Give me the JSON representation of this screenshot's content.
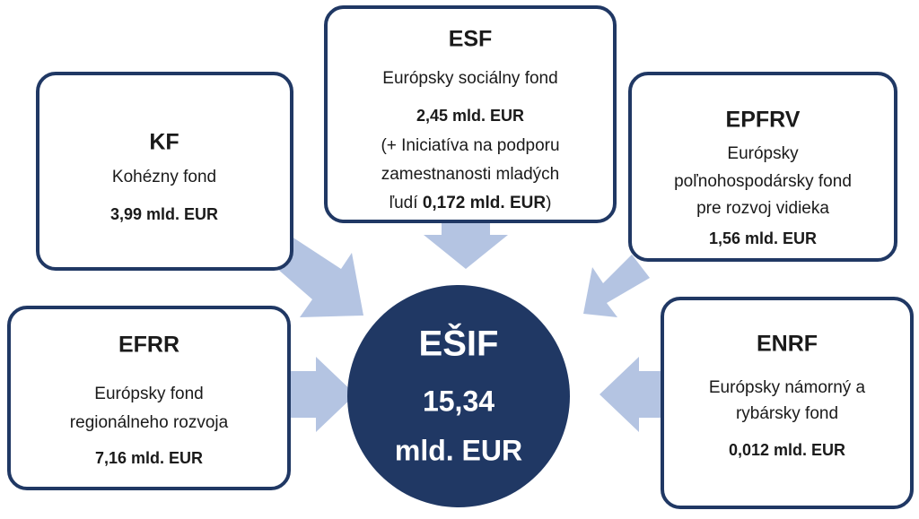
{
  "nodes": [
    {
      "title": "KF",
      "lines": [
        "Kohézny fond"
      ],
      "amount": "3,99 mld. EUR"
    },
    {
      "title": "ESF",
      "lines": [
        "Európsky sociálny fond"
      ],
      "amount": "2,45 mld. EUR",
      "note_lines": [
        "(+ Iniciatíva  na podporu",
        "zamestnanosti mladých",
        "ľudí "
      ],
      "note_amount": "0,172 mld. EUR",
      "note_end": ")"
    },
    {
      "title": "EPFRV",
      "lines": [
        "Európsky",
        "poľnohospodársky fond",
        "pre rozvoj vidieka"
      ],
      "amount": "1,56 mld. EUR"
    },
    {
      "title": "EFRR",
      "lines": [
        "Európsky fond",
        "regionálneho rozvoja"
      ],
      "amount": "7,16 mld. EUR"
    },
    {
      "title": "ENRF",
      "lines": [
        "Európsky námorný a",
        "rybársky fond"
      ],
      "amount": "0,012 mld. EUR"
    }
  ],
  "center": {
    "title": "EŠIF",
    "amount": "15,34",
    "unit": "mld. EUR"
  }
}
